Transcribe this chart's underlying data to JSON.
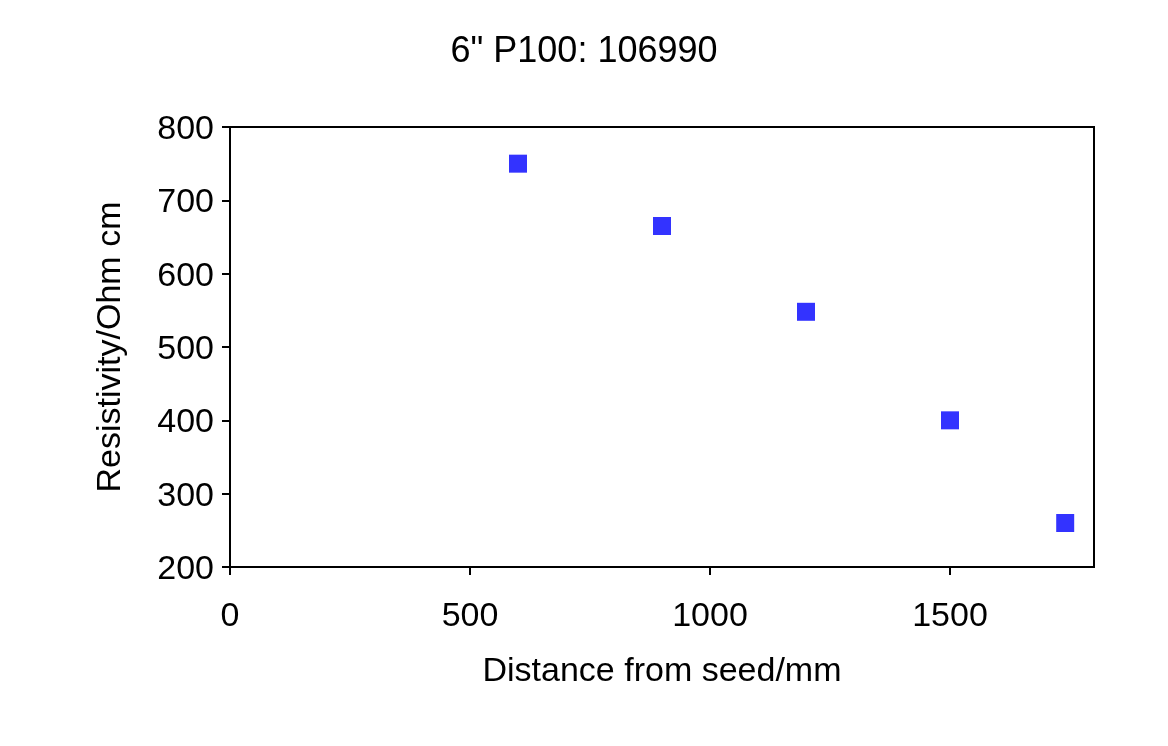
{
  "chart_data": {
    "type": "scatter",
    "title": "6\" P100: 106990",
    "xlabel": "Distance from seed/mm",
    "ylabel": "Resistivity/Ohm cm",
    "x": [
      600,
      900,
      1200,
      1500,
      1740
    ],
    "series": [
      {
        "color": "#0000ff",
        "values": [
          750,
          665,
          548,
          400,
          260
        ]
      }
    ],
    "xlim": [
      0,
      1800
    ],
    "xticks": [
      0,
      500,
      1000,
      1500
    ],
    "ylim": [
      200,
      800
    ],
    "yticks": [
      200,
      300,
      400,
      500,
      600,
      700,
      800
    ],
    "grid": false,
    "marker": "square"
  }
}
